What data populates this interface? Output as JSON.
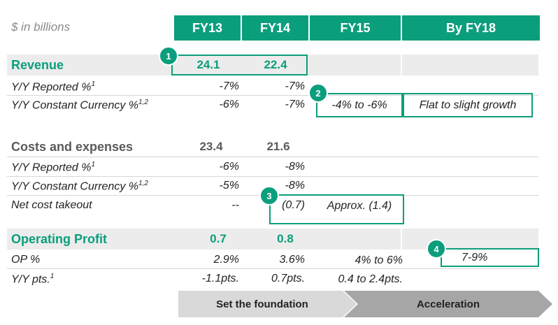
{
  "unit_label": "$ in billions",
  "columns": [
    "FY13",
    "FY14",
    "FY15",
    "By FY18"
  ],
  "revenue": {
    "label": "Revenue",
    "fy13": "24.1",
    "fy14": "22.4",
    "rows": [
      {
        "label": "Y/Y Reported %",
        "sup": "1",
        "fy13": "-7%",
        "fy14": "-7%"
      },
      {
        "label": "Y/Y Constant Currency %",
        "sup": "1,2",
        "fy13": "-6%",
        "fy14": "-7%",
        "fy15": "-4% to -6%",
        "fy18": "Flat to slight growth"
      }
    ]
  },
  "costs": {
    "label": "Costs and expenses",
    "fy13": "23.4",
    "fy14": "21.6",
    "rows": [
      {
        "label": "Y/Y Reported %",
        "sup": "1",
        "fy13": "-6%",
        "fy14": "-8%"
      },
      {
        "label": "Y/Y Constant Currency %",
        "sup": "1,2",
        "fy13": "-5%",
        "fy14": "-8%"
      },
      {
        "label": "Net cost takeout",
        "fy13": "--",
        "fy14": "(0.7)",
        "fy15": "Approx. (1.4)"
      }
    ]
  },
  "operating_profit": {
    "label": "Operating Profit",
    "fy13": "0.7",
    "fy14": "0.8",
    "rows": [
      {
        "label": "OP %",
        "fy13": "2.9%",
        "fy14": "3.6%",
        "fy15": "4% to 6%",
        "fy18": "7-9%"
      },
      {
        "label": "Y/Y pts.",
        "sup": "1",
        "fy13": "-1.1pts.",
        "fy14": "0.7pts.",
        "fy15": "0.4 to 2.4pts."
      }
    ]
  },
  "badges": [
    "1",
    "2",
    "3",
    "4"
  ],
  "phases": [
    "Set the foundation",
    "Acceleration"
  ],
  "colors": {
    "accent": "#0b9e7c",
    "band": "#ececec",
    "arrow_light": "#d9d9d9",
    "arrow_dark": "#a6a6a6"
  }
}
